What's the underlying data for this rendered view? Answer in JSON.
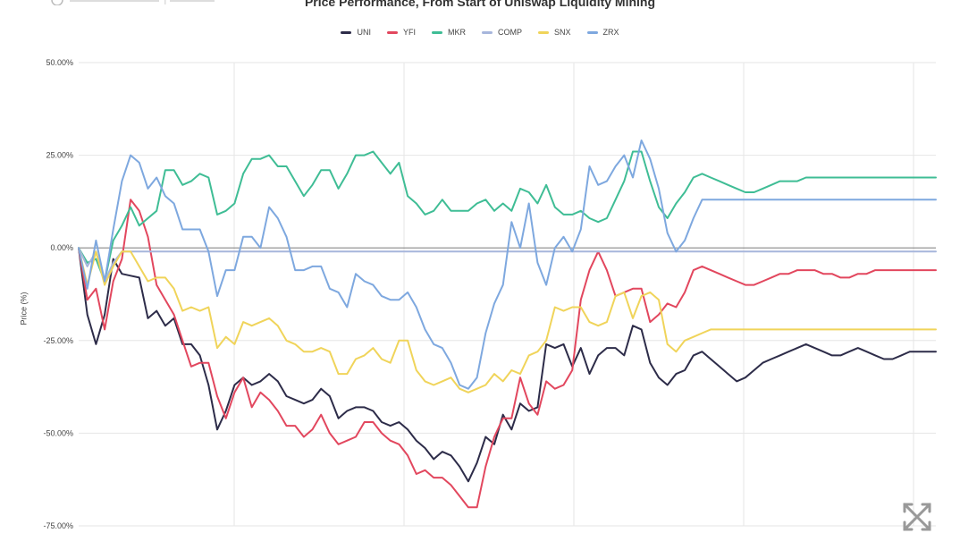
{
  "chart_data": {
    "type": "line",
    "title": "Price Performance, From Start of Uniswap Liquidity Mining",
    "ylabel": "Price (%)",
    "ylim": [
      -75,
      50
    ],
    "y_ticks": [
      "50.00%",
      "25.00%",
      "0.00%",
      "-25.00%",
      "-50.00%",
      "-75.00%"
    ],
    "y_tick_values": [
      50,
      25,
      0,
      -25,
      -50,
      -75
    ],
    "grid": true,
    "legend_position": "top-center",
    "x": [
      0,
      1,
      2,
      3,
      4,
      5,
      6,
      7,
      8,
      9,
      10,
      11,
      12,
      13,
      14,
      15,
      16,
      17,
      18,
      19,
      20,
      21,
      22,
      23,
      24,
      25,
      26,
      27,
      28,
      29,
      30,
      31,
      32,
      33,
      34,
      35,
      36,
      37,
      38,
      39,
      40,
      41,
      42,
      43,
      44,
      45,
      46,
      47,
      48,
      49,
      50,
      51,
      52,
      53,
      54,
      55,
      56,
      57,
      58,
      59,
      60,
      61,
      62,
      63,
      64,
      65,
      66,
      67,
      68,
      69,
      70,
      71,
      72,
      73,
      74,
      75,
      76,
      77,
      78,
      79,
      80,
      81,
      82,
      83,
      84,
      85,
      86,
      87,
      88,
      89,
      90,
      91,
      92,
      93,
      94,
      95,
      96,
      97,
      98,
      99
    ],
    "x_max": 99,
    "series": [
      {
        "name": "UNI",
        "color": "#2d2c49",
        "values": [
          0,
          -18,
          -26,
          -18,
          -3,
          -7,
          -7.5,
          -8,
          -19,
          -17,
          -21,
          -19,
          -26,
          -26,
          -29,
          -37,
          -49,
          -44,
          -37,
          -35,
          -37,
          -36,
          -34,
          -36,
          -40,
          -41,
          -42,
          -41,
          -38,
          -40,
          -46,
          -44,
          -43,
          -43,
          -44,
          -47,
          -48,
          -47,
          -49,
          -52,
          -54,
          -57,
          -55,
          -56,
          -59,
          -63,
          -58,
          -51,
          -53,
          -45,
          -49,
          -42,
          -44,
          -43,
          -26,
          -27,
          -26,
          -32,
          -27,
          -34,
          -29,
          -27,
          -27,
          -29,
          -21,
          -22,
          -31,
          -35,
          -37,
          -34,
          -33,
          -29,
          -28,
          -30,
          -32,
          -34,
          -36,
          -35,
          -33,
          -31,
          -30,
          -29,
          -28,
          -27,
          -26,
          -27,
          -28,
          -29,
          -29,
          -28,
          -27,
          -28,
          -29,
          -30,
          -30,
          -29,
          -28,
          -28,
          -28,
          -28
        ]
      },
      {
        "name": "YFI",
        "color": "#e2475e",
        "values": [
          0,
          -14,
          -11,
          -22,
          -9,
          -3,
          13,
          10,
          3,
          -10,
          -14,
          -18,
          -25,
          -32,
          -31,
          -31,
          -40,
          -46,
          -39,
          -35,
          -43,
          -39,
          -41,
          -44,
          -48,
          -48,
          -51,
          -49,
          -45,
          -50,
          -53,
          -52,
          -51,
          -47,
          -47,
          -50,
          -52,
          -53,
          -56,
          -61,
          -60,
          -62,
          -62,
          -64,
          -67,
          -70,
          -70,
          -59,
          -51,
          -46,
          -46,
          -35,
          -42,
          -45,
          -36,
          -38,
          -37,
          -33,
          -14,
          -6,
          -1,
          -6,
          -13,
          -12,
          -11,
          -11,
          -20,
          -18,
          -15,
          -16,
          -12,
          -6,
          -5,
          -6,
          -7,
          -8,
          -9,
          -10,
          -10,
          -9,
          -8,
          -7,
          -7,
          -6,
          -6,
          -6,
          -7,
          -7,
          -8,
          -8,
          -7,
          -7,
          -6,
          -6,
          -6,
          -6,
          -6,
          -6,
          -6,
          -6
        ]
      },
      {
        "name": "MKR",
        "color": "#3fbd95",
        "values": [
          0,
          -4,
          -3,
          -9,
          2,
          6,
          11,
          6,
          8,
          10,
          21,
          21,
          17,
          18,
          20,
          19,
          9,
          10,
          12,
          20,
          24,
          24,
          25,
          22,
          22,
          18,
          14,
          17,
          21,
          21,
          16,
          20,
          25,
          25,
          26,
          23,
          20,
          23,
          14,
          12,
          9,
          10,
          13,
          10,
          10,
          10,
          12,
          13,
          10,
          12,
          10,
          16,
          15,
          12,
          17,
          11,
          9,
          9,
          10,
          8,
          7,
          8,
          13,
          18,
          26,
          26,
          18,
          11,
          8,
          12,
          15,
          19,
          20,
          19,
          18,
          17,
          16,
          15,
          15,
          16,
          17,
          18,
          18,
          18,
          19,
          19,
          19,
          19,
          19,
          19,
          19,
          19,
          19,
          19,
          19,
          19,
          19,
          19,
          19,
          19
        ]
      },
      {
        "name": "COMP",
        "color": "#a7b6dc",
        "values": [
          0,
          -5,
          -1,
          -9,
          -4,
          -1,
          -1,
          -1,
          -1,
          -1,
          -1,
          -1,
          -1,
          -1,
          -1,
          -1,
          -1,
          -1,
          -1,
          -1,
          -1,
          -1,
          -1,
          -1,
          -1,
          -1,
          -1,
          -1,
          -1,
          -1,
          -1,
          -1,
          -1,
          -1,
          -1,
          -1,
          -1,
          -1,
          -1,
          -1,
          -1,
          -1,
          -1,
          -1,
          -1,
          -1,
          -1,
          -1,
          -1,
          -1,
          -1,
          -1,
          -1,
          -1,
          -1,
          -1,
          -1,
          -1,
          -1,
          -1,
          -1,
          -1,
          -1,
          -1,
          -1,
          -1,
          -1,
          -1,
          -1,
          -1,
          -1,
          -1,
          -1,
          -1,
          -1,
          -1,
          -1,
          -1,
          -1,
          -1,
          -1,
          -1,
          -1,
          -1,
          -1,
          -1,
          -1,
          -1,
          -1,
          -1,
          -1,
          -1,
          -1,
          -1,
          -1,
          -1,
          -1,
          -1,
          -1,
          -1
        ]
      },
      {
        "name": "SNX",
        "color": "#f0d45a",
        "values": [
          0,
          -10,
          -1,
          -10,
          -5,
          -1,
          -1,
          -5,
          -9,
          -8,
          -8,
          -11,
          -17,
          -16,
          -17,
          -16,
          -27,
          -24,
          -26,
          -20,
          -21,
          -20,
          -19,
          -21,
          -25,
          -26,
          -28,
          -28,
          -27,
          -28,
          -34,
          -34,
          -30,
          -29,
          -27,
          -30,
          -31,
          -25,
          -25,
          -33,
          -36,
          -37,
          -36,
          -35,
          -38,
          -39,
          -38,
          -37,
          -34,
          -36,
          -33,
          -34,
          -29,
          -28,
          -25,
          -16,
          -17,
          -16,
          -16,
          -20,
          -21,
          -20,
          -13,
          -12,
          -19,
          -13,
          -12,
          -14,
          -26,
          -28,
          -25,
          -24,
          -23,
          -22,
          -22,
          -22,
          -22,
          -22,
          -22,
          -22,
          -22,
          -22,
          -22,
          -22,
          -22,
          -22,
          -22,
          -22,
          -22,
          -22,
          -22,
          -22,
          -22,
          -22,
          -22,
          -22,
          -22,
          -22,
          -22,
          -22
        ]
      },
      {
        "name": "ZRX",
        "color": "#7ea8df",
        "values": [
          0,
          -11,
          2,
          -9,
          5,
          18,
          25,
          23,
          16,
          19,
          14,
          12,
          5,
          5,
          5,
          -1,
          -13,
          -6,
          -6,
          3,
          3,
          0,
          11,
          8,
          3,
          -6,
          -6,
          -5,
          -5,
          -11,
          -12,
          -16,
          -7,
          -9,
          -10,
          -13,
          -14,
          -14,
          -12,
          -16,
          -22,
          -26,
          -27,
          -31,
          -37,
          -38,
          -35,
          -23,
          -15,
          -10,
          7,
          0,
          12,
          -4,
          -10,
          0,
          3,
          -1,
          5,
          22,
          17,
          18,
          22,
          25,
          19,
          29,
          24,
          16,
          4,
          -1,
          2,
          8,
          13,
          13,
          13,
          13,
          13,
          13,
          13,
          13,
          13,
          13,
          13,
          13,
          13,
          13,
          13,
          13,
          13,
          13,
          13,
          13,
          13,
          13,
          13,
          13,
          13,
          13,
          13,
          13
        ]
      }
    ]
  }
}
